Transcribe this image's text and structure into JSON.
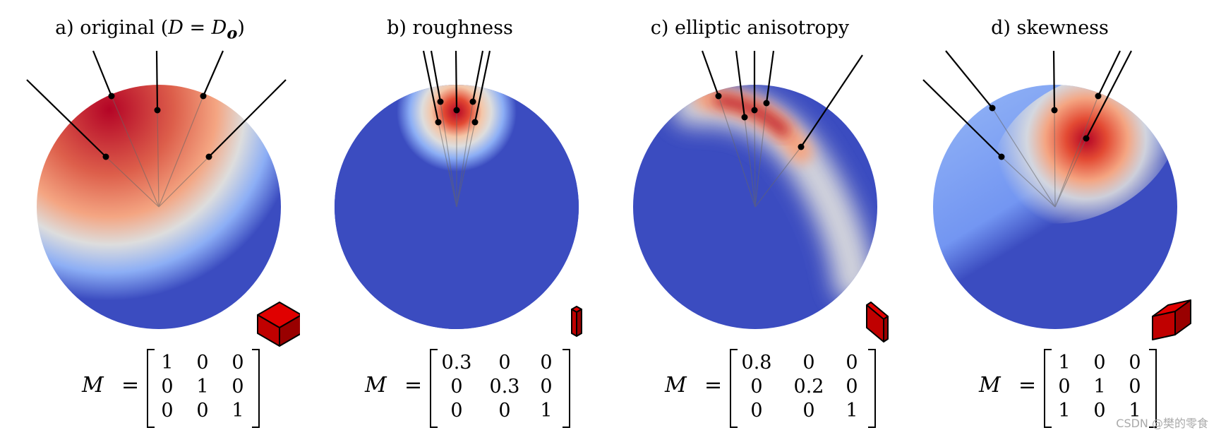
{
  "panels": [
    {
      "title_prefix": "a) original (",
      "title_math": "D = D",
      "title_sub": "o",
      "title_suffix": ")",
      "matrix": [
        [
          "1",
          "0",
          "0"
        ],
        [
          "0",
          "1",
          "0"
        ],
        [
          "0",
          "0",
          "1"
        ]
      ]
    },
    {
      "title_prefix": "b) roughness",
      "matrix": [
        [
          "0.3",
          "0",
          "0"
        ],
        [
          "0",
          "0.3",
          "0"
        ],
        [
          "0",
          "0",
          "1"
        ]
      ]
    },
    {
      "title_prefix": "c) elliptic anisotropy",
      "matrix": [
        [
          "0.8",
          "0",
          "0"
        ],
        [
          "0",
          "0.2",
          "0"
        ],
        [
          "0",
          "0",
          "1"
        ]
      ]
    },
    {
      "title_prefix": "d) skewness",
      "matrix": [
        [
          "1",
          "0",
          "0"
        ],
        [
          "0",
          "1",
          "0"
        ],
        [
          "1",
          "0",
          "1"
        ]
      ]
    }
  ],
  "matrix_symbol": "M",
  "equals": "=",
  "watermark": "CSDN @樊的零食",
  "colors": {
    "cold": "#3b4cc0",
    "warm": "#b40426",
    "neutral": "#dddddd",
    "cube": "#cc0000"
  }
}
